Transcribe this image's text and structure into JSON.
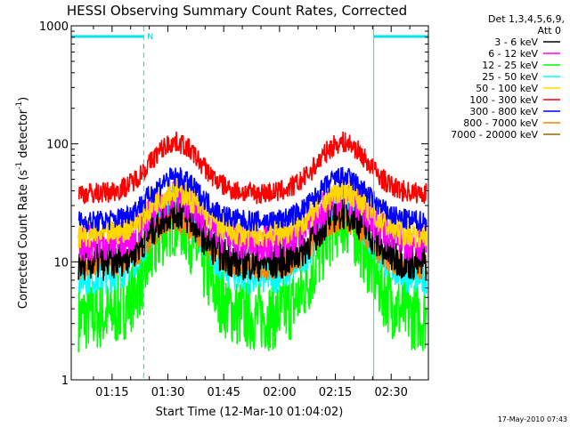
{
  "chart_data": {
    "type": "line",
    "title": "HESSI Observing Summary Count Rates, Corrected",
    "xlabel": "Start Time (12-Mar-10 01:04:02)",
    "ylabel_main": "Corrected Count Rate (s",
    "ylabel_sup1": "-1",
    "ylabel_mid": " detector",
    "ylabel_sup2": "-1",
    "ylabel_end": ")",
    "yscale": "log",
    "ylim": [
      1,
      1000
    ],
    "xlim_minutes": [
      64.03,
      160
    ],
    "x_ticks": [
      {
        "m": 75,
        "label": "01:15"
      },
      {
        "m": 90,
        "label": "01:30"
      },
      {
        "m": 105,
        "label": "01:45"
      },
      {
        "m": 120,
        "label": "02:00"
      },
      {
        "m": 135,
        "label": "02:15"
      },
      {
        "m": 150,
        "label": "02:30"
      }
    ],
    "y_ticks": [
      {
        "v": 1,
        "label": "1"
      },
      {
        "v": 10,
        "label": "10"
      },
      {
        "v": 100,
        "label": "100"
      },
      {
        "v": 1000,
        "label": "1000"
      }
    ],
    "legend_header": [
      "Det 1,3,4,5,6,9,",
      "Att 0"
    ],
    "legend_position": "right",
    "timestamp": "17-May-2010 07:43",
    "night_label": "N",
    "intervals": {
      "night_bars": [
        [
          64.03,
          83.5
        ],
        [
          145.3,
          160
        ]
      ],
      "day_lines": [
        64.03,
        145.3
      ],
      "night_lines": [
        83.5,
        160
      ]
    },
    "series": [
      {
        "name": "3 - 6 keV",
        "color": "#000000",
        "base": 9.8,
        "peak": 27,
        "noise": 0.07
      },
      {
        "name": "6 - 12 keV",
        "color": "#ff00ff",
        "base": 14.5,
        "peak": 36,
        "noise": 0.07
      },
      {
        "name": "12 - 25 keV",
        "color": "#00ff00",
        "base": 3.4,
        "peak": 22,
        "noise": 0.13
      },
      {
        "name": "25 - 50 keV",
        "color": "#00ffff",
        "base": 7.5,
        "peak": 30,
        "noise": 0.07
      },
      {
        "name": "50 - 100 keV",
        "color": "#ffd700",
        "base": 17,
        "peak": 40,
        "noise": 0.05
      },
      {
        "name": "100 - 300 keV",
        "color": "#ff0000",
        "base": 38,
        "peak": 103,
        "noise": 0.04
      },
      {
        "name": "300 - 800 keV",
        "color": "#0000ff",
        "base": 22,
        "peak": 52,
        "noise": 0.04
      },
      {
        "name": "800 - 7000 keV",
        "color": "#ff8000",
        "base": 9,
        "peak": 23,
        "noise": 0.05
      },
      {
        "name": "7000 - 20000 keV",
        "color": "#996600",
        "base": null,
        "peak": null,
        "noise": 0
      }
    ],
    "orbit_peaks_minutes": [
      92,
      137
    ],
    "orbit_width_minutes": 9.5
  }
}
